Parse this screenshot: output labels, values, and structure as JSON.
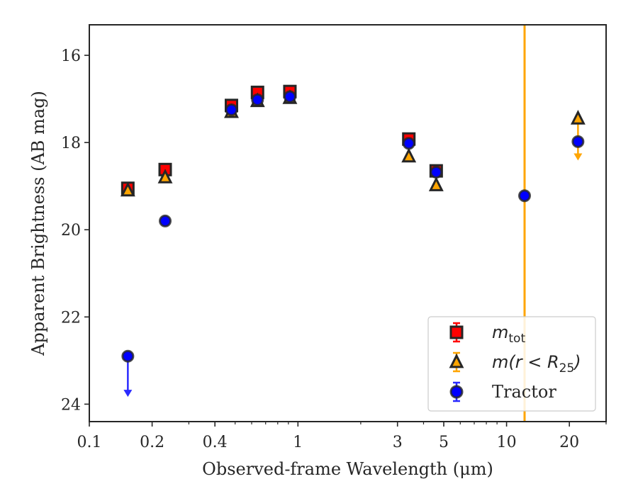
{
  "chart_data": {
    "type": "scatter",
    "xlabel": "Observed-frame Wavelength (μm)",
    "ylabel": "Apparent Brightness (AB mag)",
    "xscale": "log",
    "xlim": [
      0.1,
      30
    ],
    "ylim": [
      24.4,
      15.3
    ],
    "y_inverted": true,
    "x_major_ticks": [
      {
        "value": 0.1,
        "label": "0.1"
      },
      {
        "value": 0.2,
        "label": "0.2"
      },
      {
        "value": 0.4,
        "label": "0.4"
      },
      {
        "value": 1,
        "label": "1"
      },
      {
        "value": 3,
        "label": "3"
      },
      {
        "value": 5,
        "label": "5"
      },
      {
        "value": 10,
        "label": "10"
      },
      {
        "value": 20,
        "label": "20"
      }
    ],
    "x_minor_ticks": [
      0.3,
      0.5,
      0.6,
      0.7,
      0.8,
      0.9,
      2,
      4,
      6,
      7,
      8,
      9,
      30
    ],
    "y_ticks": [
      {
        "value": 16,
        "label": "16"
      },
      {
        "value": 18,
        "label": "18"
      },
      {
        "value": 20,
        "label": "20"
      },
      {
        "value": 22,
        "label": "22"
      },
      {
        "value": 24,
        "label": "24"
      }
    ],
    "vertical_line": {
      "x": 12.2,
      "color": "#ffa500"
    },
    "legend": {
      "placement": "lower-right",
      "entries": [
        {
          "label_main": "m",
          "label_sub": "tot",
          "marker": "square"
        },
        {
          "label_main": "m(r < R",
          "label_sub": "25",
          "label_tail": ")",
          "marker": "triangle"
        },
        {
          "label_main": "Tractor",
          "marker": "circle"
        }
      ]
    },
    "series": [
      {
        "key": "m_tot",
        "marker": "square",
        "color": "#ff0000",
        "edge_color": "#262626",
        "points": [
          {
            "x": 0.153,
            "y": 19.05
          },
          {
            "x": 0.231,
            "y": 18.62
          },
          {
            "x": 0.48,
            "y": 17.15
          },
          {
            "x": 0.64,
            "y": 16.85
          },
          {
            "x": 0.915,
            "y": 16.83
          },
          {
            "x": 3.4,
            "y": 17.92
          },
          {
            "x": 4.6,
            "y": 18.65
          }
        ]
      },
      {
        "key": "m_r_lt_R25",
        "marker": "triangle",
        "color": "#ffa500",
        "edge_color": "#262626",
        "points": [
          {
            "x": 0.153,
            "y": 19.1
          },
          {
            "x": 0.231,
            "y": 18.8
          },
          {
            "x": 0.48,
            "y": 17.3
          },
          {
            "x": 0.64,
            "y": 17.05
          },
          {
            "x": 0.915,
            "y": 16.98
          },
          {
            "x": 3.4,
            "y": 18.32
          },
          {
            "x": 4.6,
            "y": 18.98
          },
          {
            "x": 22,
            "y": 17.45,
            "upper_limit": true,
            "arrow_to": 18.38
          }
        ]
      },
      {
        "key": "tractor",
        "marker": "circle",
        "color": "#0000ff",
        "edge_color": "#262626",
        "points": [
          {
            "x": 0.153,
            "y": 22.9,
            "upper_limit": true,
            "arrow_to": 23.8
          },
          {
            "x": 0.231,
            "y": 19.8
          },
          {
            "x": 0.48,
            "y": 17.25
          },
          {
            "x": 0.64,
            "y": 17.02
          },
          {
            "x": 0.915,
            "y": 16.95
          },
          {
            "x": 3.4,
            "y": 18.02
          },
          {
            "x": 4.6,
            "y": 18.68
          },
          {
            "x": 12.2,
            "y": 19.22
          },
          {
            "x": 22,
            "y": 17.98
          }
        ]
      }
    ]
  }
}
